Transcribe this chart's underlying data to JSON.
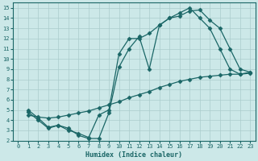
{
  "xlabel": "Humidex (Indice chaleur)",
  "background_color": "#cce8e8",
  "grid_color": "#b8d8d8",
  "line_color": "#1a6666",
  "xlim": [
    -0.5,
    23.5
  ],
  "ylim": [
    2,
    15.5
  ],
  "xticks": [
    0,
    1,
    2,
    3,
    4,
    5,
    6,
    7,
    8,
    9,
    10,
    11,
    12,
    13,
    14,
    15,
    16,
    17,
    18,
    19,
    20,
    21,
    22,
    23
  ],
  "yticks": [
    2,
    3,
    4,
    5,
    6,
    7,
    8,
    9,
    10,
    11,
    12,
    13,
    14,
    15
  ],
  "line1_x": [
    1,
    2,
    3,
    4,
    5,
    6,
    7,
    8,
    9,
    10,
    11,
    12,
    13,
    14,
    15,
    16,
    17,
    18,
    19,
    20,
    21,
    22,
    23
  ],
  "line1_y": [
    5.0,
    4.2,
    3.3,
    3.5,
    3.2,
    2.5,
    2.2,
    2.2,
    4.7,
    9.2,
    11.0,
    12.2,
    9.0,
    13.3,
    14.0,
    14.5,
    15.0,
    14.0,
    13.0,
    11.0,
    9.0,
    8.5,
    8.7
  ],
  "line2_x": [
    1,
    2,
    3,
    4,
    5,
    6,
    7,
    8,
    9,
    10,
    11,
    12,
    13,
    14,
    15,
    16,
    17,
    18,
    19,
    20,
    21,
    22,
    23
  ],
  "line2_y": [
    4.8,
    4.0,
    3.2,
    3.5,
    3.0,
    2.7,
    2.3,
    4.5,
    5.0,
    10.5,
    12.0,
    12.0,
    12.5,
    13.3,
    14.0,
    14.2,
    14.7,
    14.8,
    13.8,
    13.0,
    11.0,
    9.0,
    8.7
  ],
  "line3_x": [
    1,
    2,
    3,
    4,
    5,
    6,
    7,
    8,
    9,
    10,
    11,
    12,
    13,
    14,
    15,
    16,
    17,
    18,
    19,
    20,
    21,
    22,
    23
  ],
  "line3_y": [
    4.5,
    4.3,
    4.2,
    4.3,
    4.5,
    4.7,
    4.9,
    5.2,
    5.5,
    5.8,
    6.2,
    6.5,
    6.8,
    7.2,
    7.5,
    7.8,
    8.0,
    8.2,
    8.3,
    8.4,
    8.5,
    8.5,
    8.6
  ],
  "marker": "D",
  "markersize": 2.5,
  "linewidth": 0.9,
  "tick_fontsize": 5.0,
  "xlabel_fontsize": 6.0
}
